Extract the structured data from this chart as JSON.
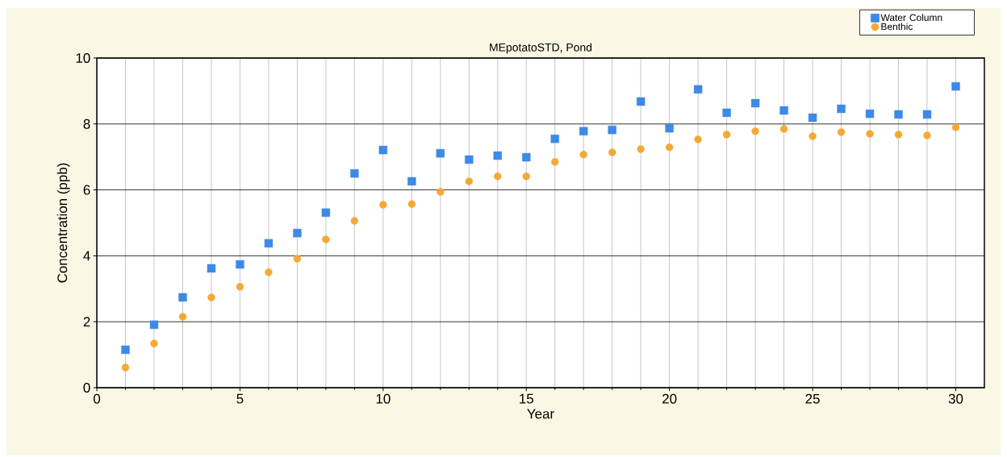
{
  "chart_data": {
    "type": "scatter",
    "title": "MEpotatoSTD, Pond",
    "xlabel": "Year",
    "ylabel": "Concentration (ppb)",
    "x": [
      1,
      2,
      3,
      4,
      5,
      6,
      7,
      8,
      9,
      10,
      11,
      12,
      13,
      14,
      15,
      16,
      17,
      18,
      19,
      20,
      21,
      22,
      23,
      24,
      25,
      26,
      27,
      28,
      29,
      30
    ],
    "series": [
      {
        "name": "Water Column",
        "color": "#3d8ae6",
        "marker": "square",
        "values": [
          1.15,
          1.91,
          2.74,
          3.62,
          3.74,
          4.38,
          4.69,
          5.31,
          6.5,
          7.21,
          6.26,
          7.11,
          6.92,
          7.04,
          6.99,
          7.55,
          7.78,
          7.82,
          8.68,
          7.87,
          9.05,
          8.34,
          8.63,
          8.41,
          8.19,
          8.46,
          8.31,
          8.29,
          8.29,
          9.14
        ]
      },
      {
        "name": "Benthic",
        "color": "#f5a833",
        "marker": "circle",
        "values": [
          0.61,
          1.34,
          2.15,
          2.74,
          3.06,
          3.5,
          3.91,
          4.5,
          5.06,
          5.55,
          5.57,
          5.94,
          6.26,
          6.41,
          6.41,
          6.85,
          7.07,
          7.14,
          7.24,
          7.29,
          7.53,
          7.68,
          7.78,
          7.85,
          7.63,
          7.75,
          7.7,
          7.68,
          7.65,
          7.9
        ]
      }
    ],
    "xlim": [
      0,
      31
    ],
    "ylim": [
      0,
      10
    ],
    "xticks": [
      0,
      5,
      10,
      15,
      20,
      25,
      30
    ],
    "yticks": [
      0,
      2,
      4,
      6,
      8,
      10
    ],
    "grid": true,
    "legend": "top right"
  }
}
